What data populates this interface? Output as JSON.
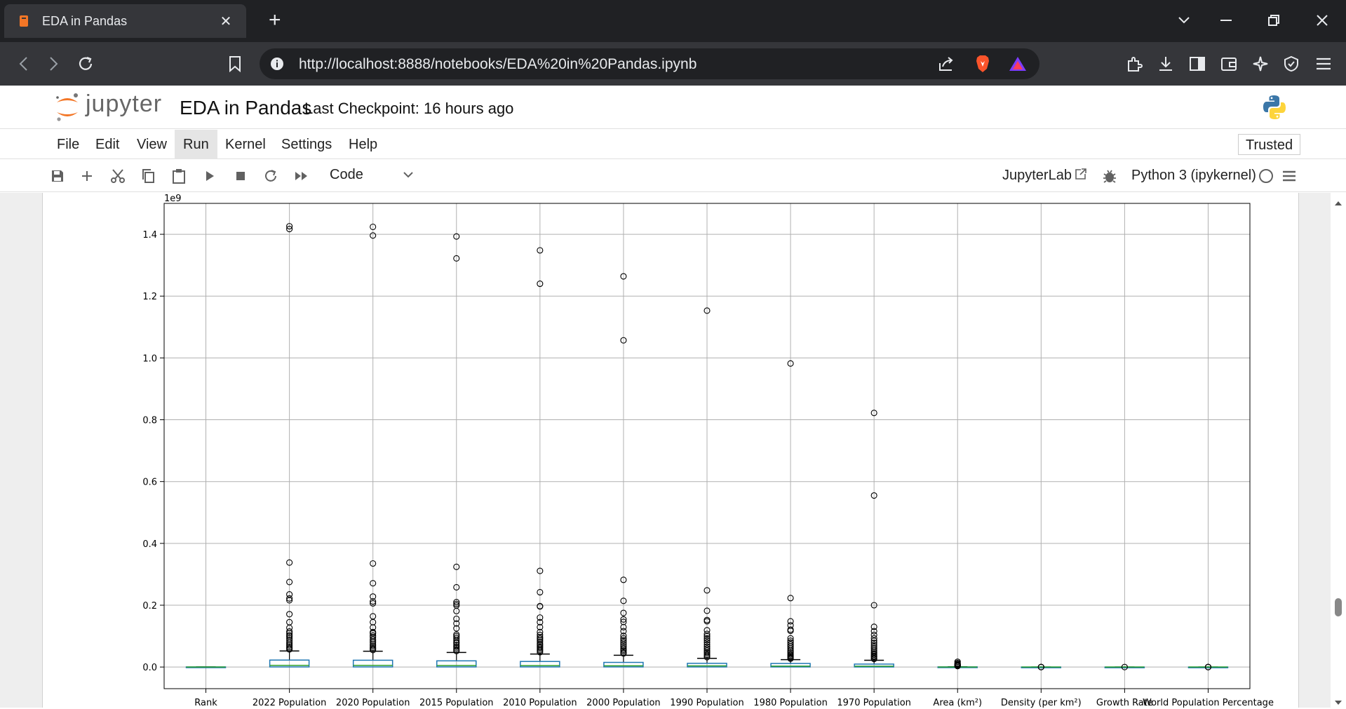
{
  "browser": {
    "tab_title": "EDA in Pandas",
    "url": "http://localhost:8888/notebooks/EDA%20in%20Pandas.ipynb"
  },
  "jupyter": {
    "logo_text": "jupyter",
    "notebook_name": "EDA in Pandas",
    "checkpoint": "Last Checkpoint: 16 hours ago",
    "menu": [
      "File",
      "Edit",
      "View",
      "Run",
      "Kernel",
      "Settings",
      "Help"
    ],
    "active_menu": "Run",
    "trusted": "Trusted",
    "cell_type": "Code",
    "jupyterlab_link": "JupyterLab",
    "kernel": "Python 3 (ipykernel)"
  },
  "chart_data": {
    "type": "box",
    "scale_label": "1e9",
    "categories": [
      "Rank",
      "2022 Population",
      "2020 Population",
      "2015 Population",
      "2010 Population",
      "2000 Population",
      "1990 Population",
      "1980 Population",
      "1970 Population",
      "Area (km²)",
      "Density (per km²)",
      "Growth Rate",
      "World Population Percentage"
    ],
    "yticks": [
      "0.0",
      "0.2",
      "0.4",
      "0.6",
      "0.8",
      "1.0",
      "1.2",
      "1.4"
    ],
    "ylim": [
      -0.07,
      1.5
    ],
    "grid": true,
    "boxes": [
      {
        "q1": 0,
        "median": 0,
        "q3": 0.0003,
        "whisker_hi": 0.0003,
        "outliers": []
      },
      {
        "q1": 0.0004,
        "median": 0.0055,
        "q3": 0.0225,
        "whisker_hi": 0.052,
        "outliers": [
          1.426,
          1.417,
          0.338,
          0.275,
          0.235,
          0.222,
          0.216,
          0.171,
          0.145,
          0.127,
          0.115,
          0.1095,
          0.103,
          0.099,
          0.093,
          0.087,
          0.081,
          0.075,
          0.07,
          0.065,
          0.061,
          0.057
        ]
      },
      {
        "q1": 0.0004,
        "median": 0.0054,
        "q3": 0.022,
        "whisker_hi": 0.051,
        "outliers": [
          1.424,
          1.396,
          0.335,
          0.271,
          0.228,
          0.212,
          0.206,
          0.164,
          0.145,
          0.128,
          0.113,
          0.109,
          0.102,
          0.097,
          0.09,
          0.084,
          0.079,
          0.073,
          0.068,
          0.063,
          0.059,
          0.055
        ]
      },
      {
        "q1": 0.0004,
        "median": 0.005,
        "q3": 0.02,
        "whisker_hi": 0.047,
        "outliers": [
          1.393,
          1.322,
          0.324,
          0.258,
          0.21,
          0.204,
          0.199,
          0.181,
          0.156,
          0.141,
          0.125,
          0.105,
          0.1,
          0.094,
          0.087,
          0.081,
          0.077,
          0.071,
          0.066,
          0.061,
          0.056,
          0.052
        ]
      },
      {
        "q1": 0.0004,
        "median": 0.0047,
        "q3": 0.018,
        "whisker_hi": 0.042,
        "outliers": [
          1.348,
          1.24,
          0.311,
          0.242,
          0.197,
          0.196,
          0.16,
          0.145,
          0.129,
          0.113,
          0.104,
          0.097,
          0.092,
          0.087,
          0.082,
          0.075,
          0.071,
          0.066,
          0.062,
          0.057,
          0.053,
          0.048
        ]
      },
      {
        "q1": 0.0004,
        "median": 0.004,
        "q3": 0.015,
        "whisker_hi": 0.038,
        "outliers": [
          1.264,
          1.057,
          0.282,
          0.214,
          0.175,
          0.154,
          0.146,
          0.129,
          0.116,
          0.101,
          0.093,
          0.087,
          0.081,
          0.074,
          0.067,
          0.061,
          0.056,
          0.052,
          0.047,
          0.044
        ]
      },
      {
        "q1": 0.0003,
        "median": 0.0036,
        "q3": 0.012,
        "whisker_hi": 0.028,
        "outliers": [
          1.153,
          0.248,
          0.182,
          0.152,
          0.148,
          0.119,
          0.107,
          0.1,
          0.093,
          0.087,
          0.08,
          0.073,
          0.066,
          0.06,
          0.054,
          0.049,
          0.045,
          0.04,
          0.036,
          0.032
        ]
      },
      {
        "q1": 0.0003,
        "median": 0.003,
        "q3": 0.0115,
        "whisker_hi": 0.024,
        "outliers": [
          0.982,
          0.223,
          0.148,
          0.135,
          0.121,
          0.117,
          0.093,
          0.085,
          0.079,
          0.073,
          0.067,
          0.061,
          0.055,
          0.05,
          0.046,
          0.041,
          0.037,
          0.034,
          0.03,
          0.027
        ]
      },
      {
        "q1": 0.0002,
        "median": 0.0026,
        "q3": 0.0095,
        "whisker_hi": 0.022,
        "outliers": [
          0.822,
          0.555,
          0.2,
          0.13,
          0.116,
          0.104,
          0.093,
          0.085,
          0.078,
          0.071,
          0.065,
          0.059,
          0.053,
          0.048,
          0.044,
          0.04,
          0.036,
          0.033,
          0.029,
          0.026
        ]
      },
      {
        "q1": 1e-05,
        "median": 0.0001,
        "q3": 0.0004,
        "whisker_hi": 0.001,
        "outliers": [
          0.017,
          0.013,
          0.01,
          0.0085,
          0.0075,
          0.0065,
          0.0055,
          0.0045,
          0.004,
          0.0035,
          0.003
        ]
      },
      {
        "q1": 0,
        "median": 0,
        "q3": 0,
        "whisker_hi": 0,
        "outliers": [
          3e-05,
          2e-05,
          1e-05
        ]
      },
      {
        "q1": 0,
        "median": 0,
        "q3": 0,
        "whisker_hi": 0,
        "outliers": [
          0
        ]
      },
      {
        "q1": 0,
        "median": 0,
        "q3": 0,
        "whisker_hi": 0,
        "outliers": [
          2e-05,
          1e-05,
          0
        ]
      }
    ],
    "colors": {
      "box": "#1f77b4",
      "median": "#2ca02c",
      "grid": "#b0b0b0"
    }
  }
}
